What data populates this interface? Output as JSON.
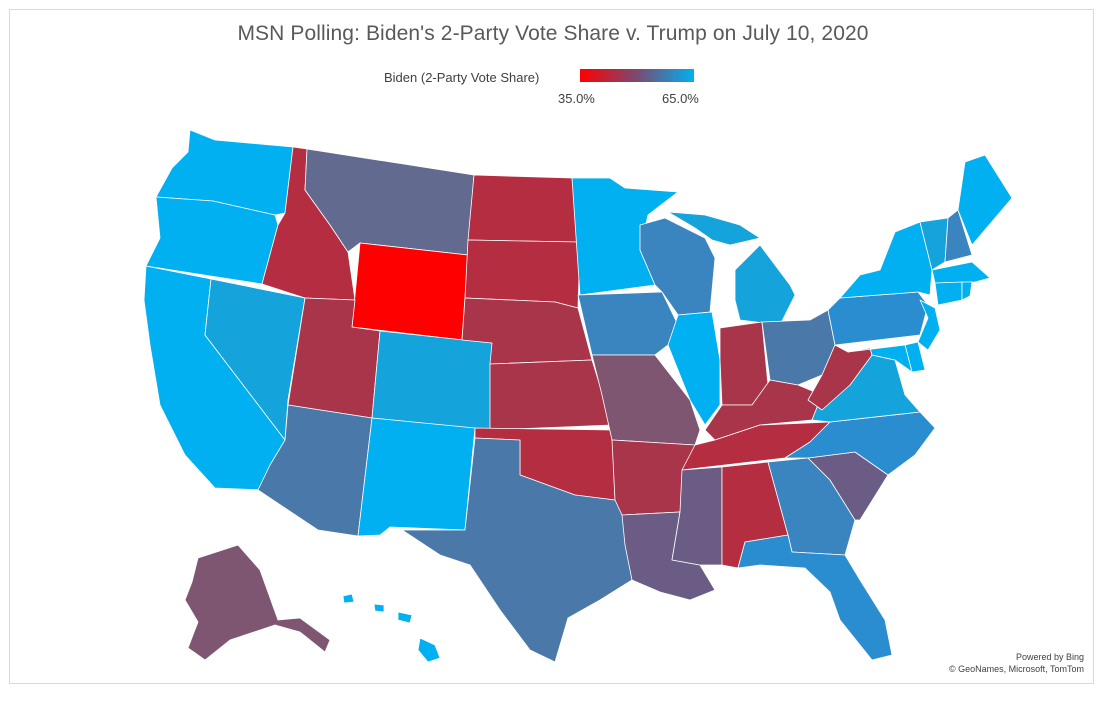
{
  "title": "MSN Polling: Biden's 2-Party Vote Share v. Trump on July 10, 2020",
  "legend": {
    "label": "Biden (2-Party Vote Share)",
    "min_label": "35.0%",
    "max_label": "65.0%",
    "min_color": "#ff0000",
    "mid_color": "#7a4a72",
    "max_color": "#00b0f0"
  },
  "credits": {
    "line1": "Powered by Bing",
    "line2": "© GeoNames, Microsoft, TomTom"
  },
  "states": [
    {
      "name": "Washington",
      "color": "#00b0f0"
    },
    {
      "name": "Oregon",
      "color": "#00b0f0"
    },
    {
      "name": "California",
      "color": "#00b0f0"
    },
    {
      "name": "Nevada",
      "color": "#15a3dc"
    },
    {
      "name": "Idaho",
      "color": "#b42d40"
    },
    {
      "name": "Montana",
      "color": "#626a8f"
    },
    {
      "name": "Wyoming",
      "color": "#ff0000"
    },
    {
      "name": "Utah",
      "color": "#a8354a"
    },
    {
      "name": "Arizona",
      "color": "#4a78a8"
    },
    {
      "name": "Colorado",
      "color": "#15a3dc"
    },
    {
      "name": "New Mexico",
      "color": "#00b0f0"
    },
    {
      "name": "North Dakota",
      "color": "#b42d40"
    },
    {
      "name": "South Dakota",
      "color": "#b42d40"
    },
    {
      "name": "Nebraska",
      "color": "#a8354a"
    },
    {
      "name": "Kansas",
      "color": "#a8354a"
    },
    {
      "name": "Oklahoma",
      "color": "#b42d40"
    },
    {
      "name": "Texas",
      "color": "#4a78a8"
    },
    {
      "name": "Minnesota",
      "color": "#00b0f0"
    },
    {
      "name": "Iowa",
      "color": "#3a84c0"
    },
    {
      "name": "Missouri",
      "color": "#7e5672"
    },
    {
      "name": "Arkansas",
      "color": "#a8354a"
    },
    {
      "name": "Louisiana",
      "color": "#6a5c85"
    },
    {
      "name": "Wisconsin",
      "color": "#3a84c0"
    },
    {
      "name": "Illinois",
      "color": "#00b0f0"
    },
    {
      "name": "Michigan",
      "color": "#15a3dc"
    },
    {
      "name": "Indiana",
      "color": "#a8354a"
    },
    {
      "name": "Ohio",
      "color": "#4a78a8"
    },
    {
      "name": "Kentucky",
      "color": "#a8354a"
    },
    {
      "name": "Tennessee",
      "color": "#b42d40"
    },
    {
      "name": "Mississippi",
      "color": "#6a5c85"
    },
    {
      "name": "Alabama",
      "color": "#b42d40"
    },
    {
      "name": "Georgia",
      "color": "#3a84c0"
    },
    {
      "name": "Florida",
      "color": "#2a8dd0"
    },
    {
      "name": "South Carolina",
      "color": "#6a5c85"
    },
    {
      "name": "North Carolina",
      "color": "#2a8dd0"
    },
    {
      "name": "Virginia",
      "color": "#15a3dc"
    },
    {
      "name": "West Virginia",
      "color": "#a8354a"
    },
    {
      "name": "Pennsylvania",
      "color": "#2a8dd0"
    },
    {
      "name": "New York",
      "color": "#00b0f0"
    },
    {
      "name": "Vermont",
      "color": "#15a3dc"
    },
    {
      "name": "New Hampshire",
      "color": "#3a84c0"
    },
    {
      "name": "Maine",
      "color": "#00b0f0"
    },
    {
      "name": "Massachusetts",
      "color": "#00b0f0"
    },
    {
      "name": "Connecticut",
      "color": "#00b0f0"
    },
    {
      "name": "Rhode Island",
      "color": "#00b0f0"
    },
    {
      "name": "New Jersey",
      "color": "#00b0f0"
    },
    {
      "name": "Delaware",
      "color": "#00b0f0"
    },
    {
      "name": "Maryland",
      "color": "#00b0f0"
    },
    {
      "name": "Alaska",
      "color": "#7e5672"
    },
    {
      "name": "Hawaii",
      "color": "#00b0f0"
    }
  ]
}
